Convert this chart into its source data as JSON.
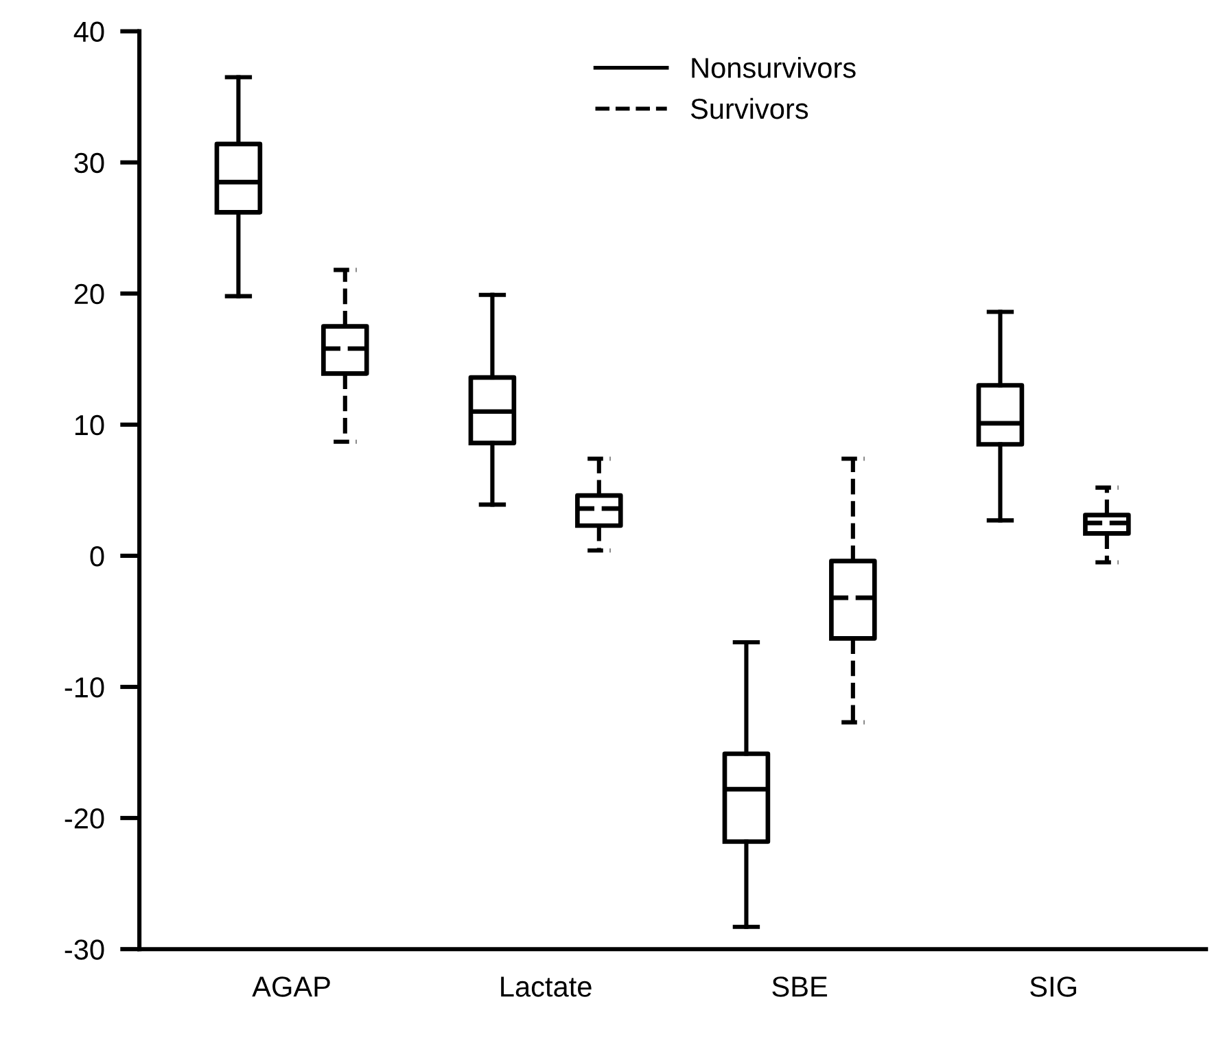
{
  "chart_data": {
    "type": "box",
    "categories": [
      "AGAP",
      "Lactate",
      "SBE",
      "SIG"
    ],
    "ylim": [
      -30,
      40
    ],
    "yticks": [
      -30,
      -20,
      -10,
      0,
      10,
      20,
      30,
      40
    ],
    "grid": false,
    "legend": "top",
    "series": [
      {
        "name": "Nonsurvivors",
        "color": "#000000",
        "line_style": "solid",
        "boxes": [
          {
            "low": 19.8,
            "q1": 26.2,
            "median": 28.5,
            "q3": 31.4,
            "high": 36.5
          },
          {
            "low": 3.9,
            "q1": 8.6,
            "median": 11.0,
            "q3": 13.6,
            "high": 19.9
          },
          {
            "low": -28.3,
            "q1": -21.8,
            "median": -17.8,
            "q3": -15.1,
            "high": -6.6
          },
          {
            "low": 2.7,
            "q1": 8.5,
            "median": 10.1,
            "q3": 13.0,
            "high": 18.6
          }
        ]
      },
      {
        "name": "Survivors",
        "color": "#000000",
        "line_style": "dashed",
        "boxes": [
          {
            "low": 8.7,
            "q1": 13.9,
            "median": 15.8,
            "q3": 17.5,
            "high": 21.8
          },
          {
            "low": 0.4,
            "q1": 2.3,
            "median": 3.6,
            "q3": 4.6,
            "high": 7.4
          },
          {
            "low": -12.7,
            "q1": -6.3,
            "median": -3.2,
            "q3": -0.4,
            "high": 7.4
          },
          {
            "low": -0.5,
            "q1": 1.7,
            "median": 2.5,
            "q3": 3.1,
            "high": 5.2
          }
        ]
      }
    ]
  }
}
